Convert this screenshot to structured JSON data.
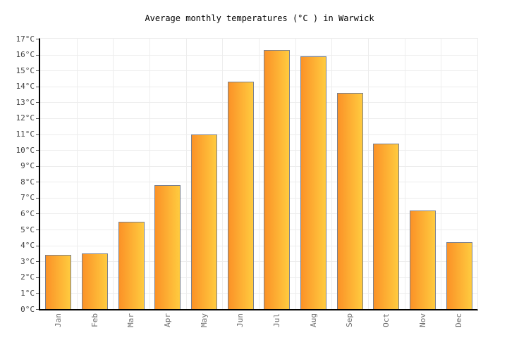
{
  "title": "Average monthly temperatures (°C ) in Warwick",
  "chart_data": {
    "type": "bar",
    "title": "Average monthly temperatures (°C ) in Warwick",
    "categories": [
      "Jan",
      "Feb",
      "Mar",
      "Apr",
      "May",
      "Jun",
      "Jul",
      "Aug",
      "Sep",
      "Oct",
      "Nov",
      "Dec"
    ],
    "values": [
      3.4,
      3.5,
      5.5,
      7.8,
      11.0,
      14.3,
      16.3,
      15.9,
      13.6,
      10.4,
      6.2,
      4.2
    ],
    "xlabel": "",
    "ylabel": "°C",
    "ylim": [
      0,
      17
    ],
    "y_tick_step": 1,
    "y_tick_suffix": "°C",
    "grid": true,
    "legend": "none",
    "colors": {
      "bar_gradient_left": "#FB9227",
      "bar_gradient_right": "#FFCB3F",
      "bar_border": "#7A808E",
      "axis_line": "#000000",
      "gridline": "#EDEDED",
      "y_label_text": "#444444",
      "x_label_text": "#737373",
      "title_text": "#000000",
      "background": "#FFFFFF"
    }
  }
}
